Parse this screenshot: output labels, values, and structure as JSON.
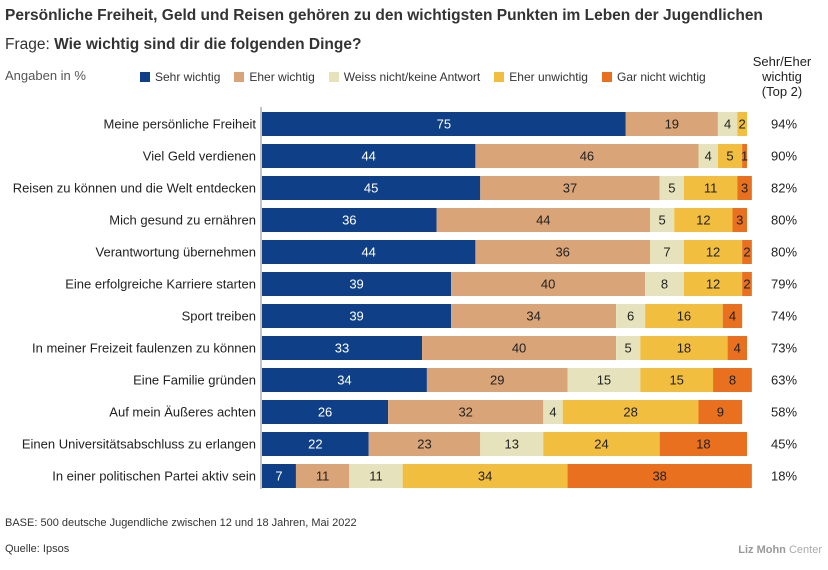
{
  "title": "Persönliche Freiheit, Geld und Reisen gehören zu den wichtigsten Punkten im Leben der Jugendlichen",
  "question_prefix": "Frage:",
  "question_text": "Wie wichtig sind dir die folgenden Dinge?",
  "units_label": "Angaben in %",
  "top2_header": [
    "Sehr/Eher",
    "wichtig",
    "(Top 2)"
  ],
  "footer_base": "BASE: 500 deutsche Jugendliche zwischen 12 und 18 Jahren, Mai 2022",
  "footer_source": "Quelle: Ipsos",
  "brand_name": "Liz Mohn",
  "brand_suffix": "Center",
  "chart_data": {
    "type": "stacked-bar-horizontal",
    "xlim": [
      0,
      100
    ],
    "colors": [
      "#0f3f86",
      "#d9a478",
      "#e6e3bc",
      "#f1be3f",
      "#e8701f"
    ],
    "series_names": [
      "Sehr wichtig",
      "Eher wichtig",
      "Weiss nicht/keine Antwort",
      "Eher unwichtig",
      "Gar nicht wichtig"
    ],
    "categories": [
      "Meine persönliche Freiheit",
      "Viel Geld verdienen",
      "Reisen zu können und die Welt entdecken",
      "Mich gesund zu ernähren",
      "Verantwortung übernehmen",
      "Eine erfolgreiche Karriere starten",
      "Sport treiben",
      "In meiner Freizeit faulenzen zu können",
      "Eine Familie gründen",
      "Auf mein Äußeres achten",
      "Einen Universitätsabschluss zu erlangen",
      "In einer politischen Partei aktiv sein"
    ],
    "values": [
      [
        75,
        19,
        4,
        2,
        0
      ],
      [
        44,
        46,
        4,
        5,
        1
      ],
      [
        45,
        37,
        5,
        11,
        3
      ],
      [
        36,
        44,
        5,
        12,
        3
      ],
      [
        44,
        36,
        7,
        12,
        2
      ],
      [
        39,
        40,
        8,
        12,
        2
      ],
      [
        39,
        34,
        6,
        16,
        4
      ],
      [
        33,
        40,
        5,
        18,
        4
      ],
      [
        34,
        29,
        15,
        15,
        8
      ],
      [
        26,
        32,
        4,
        28,
        9
      ],
      [
        22,
        23,
        13,
        24,
        18
      ],
      [
        7,
        11,
        11,
        34,
        38
      ]
    ],
    "top2": [
      "94%",
      "90%",
      "82%",
      "80%",
      "80%",
      "79%",
      "74%",
      "73%",
      "63%",
      "58%",
      "45%",
      "18%"
    ]
  }
}
